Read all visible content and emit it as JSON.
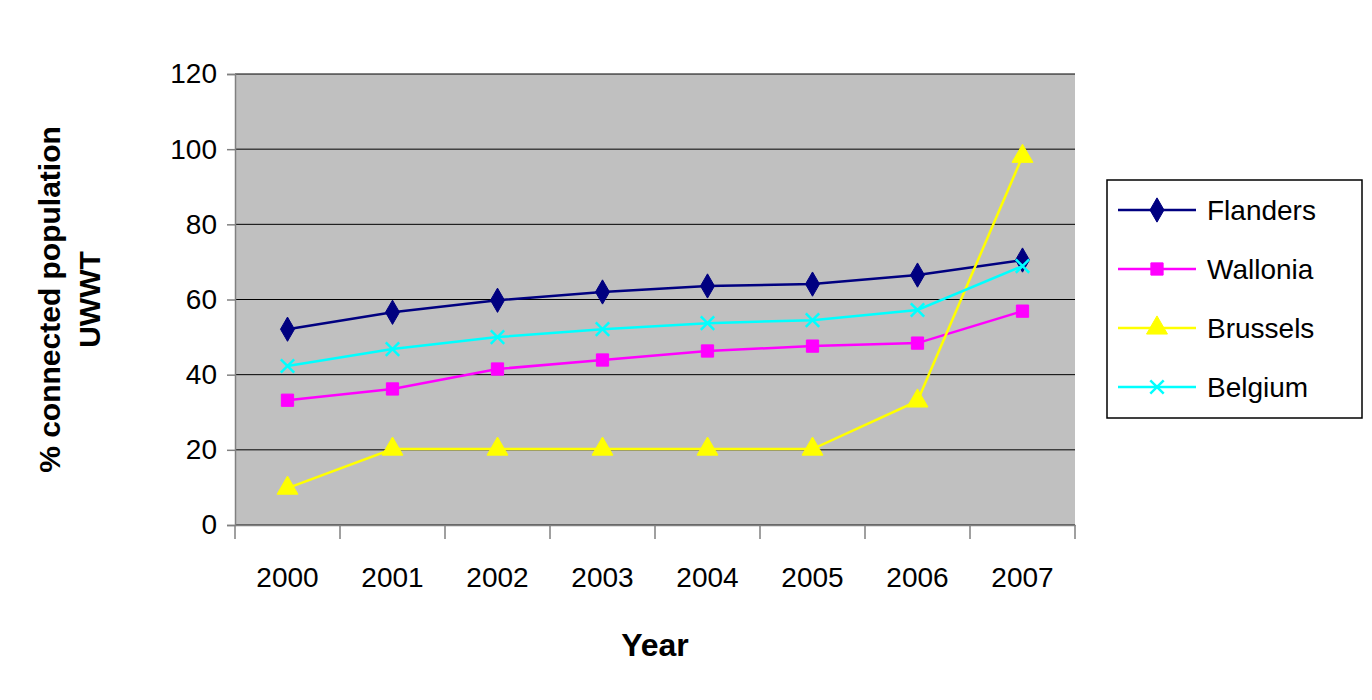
{
  "chart_data": {
    "type": "line",
    "x_label": "Year",
    "y_label": "% connected population UWWT",
    "categories": [
      "2000",
      "2001",
      "2002",
      "2003",
      "2004",
      "2005",
      "2006",
      "2007"
    ],
    "series": [
      {
        "name": "Flanders",
        "color": "#000080",
        "marker": "diamond",
        "values": [
          52.1,
          56.6,
          59.8,
          62.0,
          63.6,
          64.1,
          66.5,
          70.5
        ]
      },
      {
        "name": "Wallonia",
        "color": "#FF00FF",
        "marker": "square",
        "values": [
          33.2,
          36.2,
          41.5,
          43.9,
          46.3,
          47.6,
          48.4,
          56.9
        ]
      },
      {
        "name": "Brussels",
        "color": "#FFFF00",
        "marker": "triangle",
        "values": [
          9.8,
          20.2,
          20.2,
          20.2,
          20.2,
          20.2,
          33.0,
          98.1
        ]
      },
      {
        "name": "Belgium",
        "color": "#00FFFF",
        "marker": "x",
        "values": [
          42.3,
          46.8,
          50.0,
          52.1,
          53.7,
          54.5,
          57.2,
          68.9
        ]
      }
    ],
    "ylim": [
      0,
      120
    ],
    "yticks": [
      0,
      20,
      40,
      60,
      80,
      100,
      120
    ],
    "grid": true,
    "legend": "right"
  }
}
